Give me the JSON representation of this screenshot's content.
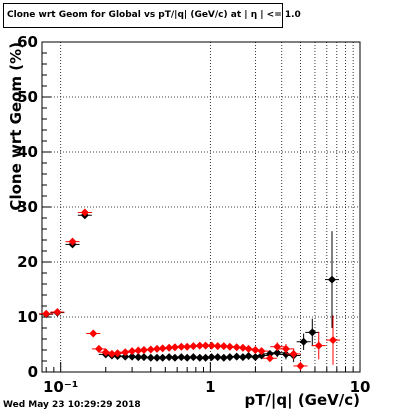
{
  "title": "Clone wrt Geom for Global vs pT/|q| (GeV/c) at | η | <= 1.0",
  "timestamp": "Wed May 23 10:29:29 2018",
  "chart_data": {
    "type": "scatter",
    "title": "Clone wrt Geom for Global vs pT/|q| (GeV/c) at | η | <= 1.0",
    "xlabel": "pT/|q| (GeV/c)",
    "ylabel": "Clone wrt Geom (%)",
    "xscale": "log",
    "xlim": [
      0.075,
      10
    ],
    "ylim": [
      0,
      60
    ],
    "grid": true,
    "x_ticks": [
      {
        "value": 0.1,
        "label": "10⁻¹"
      },
      {
        "value": 1,
        "label": "1"
      },
      {
        "value": 10,
        "label": "10"
      }
    ],
    "y_ticks": [
      0,
      10,
      20,
      30,
      40,
      50,
      60
    ],
    "series": [
      {
        "color": "#000000",
        "points": [
          {
            "x": 0.08,
            "y": 10.5
          },
          {
            "x": 0.095,
            "y": 10.8
          },
          {
            "x": 0.12,
            "y": 23.2
          },
          {
            "x": 0.145,
            "y": 28.5
          },
          {
            "x": 0.2,
            "y": 3.2
          },
          {
            "x": 0.22,
            "y": 3.0
          },
          {
            "x": 0.24,
            "y": 2.9
          },
          {
            "x": 0.27,
            "y": 2.8
          },
          {
            "x": 0.3,
            "y": 2.8
          },
          {
            "x": 0.33,
            "y": 2.7
          },
          {
            "x": 0.36,
            "y": 2.7
          },
          {
            "x": 0.4,
            "y": 2.6
          },
          {
            "x": 0.44,
            "y": 2.6
          },
          {
            "x": 0.48,
            "y": 2.6
          },
          {
            "x": 0.53,
            "y": 2.7
          },
          {
            "x": 0.58,
            "y": 2.6
          },
          {
            "x": 0.64,
            "y": 2.7
          },
          {
            "x": 0.7,
            "y": 2.6
          },
          {
            "x": 0.77,
            "y": 2.7
          },
          {
            "x": 0.85,
            "y": 2.6
          },
          {
            "x": 0.93,
            "y": 2.6
          },
          {
            "x": 1.02,
            "y": 2.7
          },
          {
            "x": 1.12,
            "y": 2.7
          },
          {
            "x": 1.23,
            "y": 2.6
          },
          {
            "x": 1.35,
            "y": 2.7
          },
          {
            "x": 1.5,
            "y": 2.8
          },
          {
            "x": 1.65,
            "y": 2.7
          },
          {
            "x": 1.8,
            "y": 2.9
          },
          {
            "x": 2.0,
            "y": 2.7
          },
          {
            "x": 2.2,
            "y": 3.0
          },
          {
            "x": 2.5,
            "y": 3.3
          },
          {
            "x": 2.8,
            "y": 3.5,
            "err": 0.8
          },
          {
            "x": 3.2,
            "y": 3.2,
            "err": 0.9
          },
          {
            "x": 3.6,
            "y": 3.0,
            "err": 1.2
          },
          {
            "x": 4.2,
            "y": 5.5,
            "err": 1.5
          },
          {
            "x": 4.8,
            "y": 7.2,
            "err": 2.5
          },
          {
            "x": 6.5,
            "y": 16.8,
            "err": 8.8
          }
        ]
      },
      {
        "color": "#ff0000",
        "points": [
          {
            "x": 0.08,
            "y": 10.6
          },
          {
            "x": 0.095,
            "y": 10.9
          },
          {
            "x": 0.12,
            "y": 23.7
          },
          {
            "x": 0.145,
            "y": 29.0
          },
          {
            "x": 0.165,
            "y": 7.0
          },
          {
            "x": 0.18,
            "y": 4.2
          },
          {
            "x": 0.2,
            "y": 3.6
          },
          {
            "x": 0.22,
            "y": 3.3
          },
          {
            "x": 0.24,
            "y": 3.4
          },
          {
            "x": 0.27,
            "y": 3.6
          },
          {
            "x": 0.3,
            "y": 3.8
          },
          {
            "x": 0.33,
            "y": 3.9
          },
          {
            "x": 0.36,
            "y": 4.0
          },
          {
            "x": 0.4,
            "y": 4.1
          },
          {
            "x": 0.44,
            "y": 4.2
          },
          {
            "x": 0.48,
            "y": 4.3
          },
          {
            "x": 0.53,
            "y": 4.4
          },
          {
            "x": 0.58,
            "y": 4.5
          },
          {
            "x": 0.64,
            "y": 4.6
          },
          {
            "x": 0.7,
            "y": 4.6
          },
          {
            "x": 0.77,
            "y": 4.7
          },
          {
            "x": 0.85,
            "y": 4.8
          },
          {
            "x": 0.93,
            "y": 4.8
          },
          {
            "x": 1.02,
            "y": 4.8
          },
          {
            "x": 1.12,
            "y": 4.7
          },
          {
            "x": 1.23,
            "y": 4.7
          },
          {
            "x": 1.35,
            "y": 4.6
          },
          {
            "x": 1.5,
            "y": 4.5
          },
          {
            "x": 1.65,
            "y": 4.4
          },
          {
            "x": 1.8,
            "y": 4.2
          },
          {
            "x": 2.0,
            "y": 4.0
          },
          {
            "x": 2.2,
            "y": 3.8
          },
          {
            "x": 2.5,
            "y": 2.5
          },
          {
            "x": 2.8,
            "y": 4.6,
            "err": 0.8
          },
          {
            "x": 3.2,
            "y": 4.2,
            "err": 0.9
          },
          {
            "x": 3.6,
            "y": 3.3,
            "err": 1.0
          },
          {
            "x": 4.0,
            "y": 1.1,
            "err": 0.8
          },
          {
            "x": 5.3,
            "y": 4.8,
            "err": 2.5
          },
          {
            "x": 6.6,
            "y": 5.8,
            "err": 4.5
          }
        ]
      }
    ]
  }
}
